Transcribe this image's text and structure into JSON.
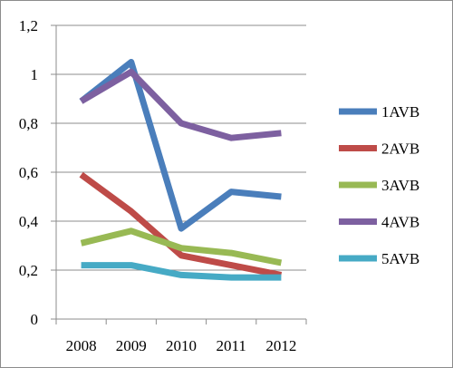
{
  "chart_data": {
    "type": "line",
    "title": "",
    "xlabel": "",
    "ylabel": "",
    "categories": [
      "2008",
      "2009",
      "2010",
      "2011",
      "2012"
    ],
    "ylim": [
      0,
      1.2
    ],
    "y_ticks": [
      "0",
      "0,2",
      "0,4",
      "0,6",
      "0,8",
      "1",
      "1,2"
    ],
    "grid": "horizontal",
    "legend_position": "right",
    "series": [
      {
        "name": "1AVB",
        "color": "#4a7ebb",
        "values": [
          0.89,
          1.05,
          0.37,
          0.52,
          0.5
        ]
      },
      {
        "name": "2AVB",
        "color": "#be4b48",
        "values": [
          0.59,
          0.44,
          0.26,
          0.22,
          0.18
        ]
      },
      {
        "name": "3AVB",
        "color": "#98b954",
        "values": [
          0.31,
          0.36,
          0.29,
          0.27,
          0.23
        ]
      },
      {
        "name": "4AVB",
        "color": "#7d60a0",
        "values": [
          0.89,
          1.01,
          0.8,
          0.74,
          0.76
        ]
      },
      {
        "name": "5AVB",
        "color": "#46aac5",
        "values": [
          0.22,
          0.22,
          0.18,
          0.17,
          0.17
        ]
      }
    ]
  }
}
